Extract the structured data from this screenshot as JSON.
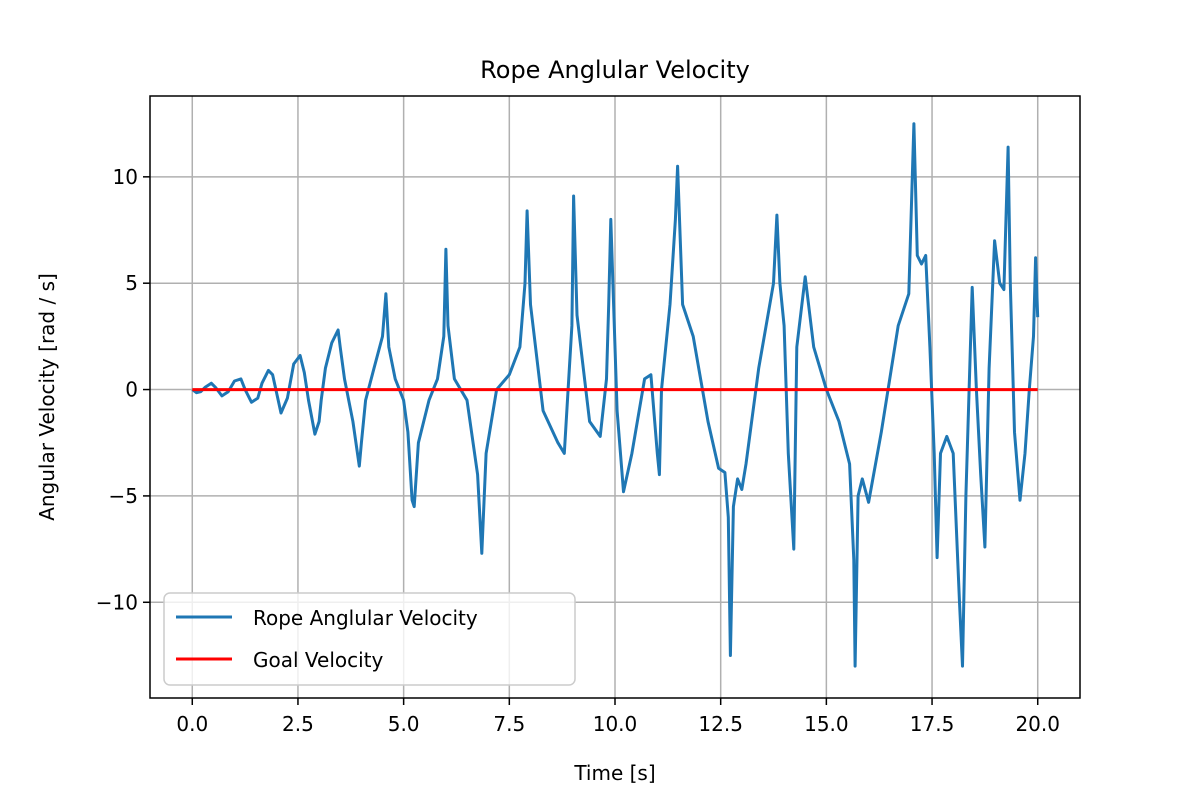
{
  "chart_data": {
    "type": "line",
    "title": "Rope Anglular Velocity",
    "xlabel": "Time [s]",
    "ylabel": "Angular Velocity [rad / s]",
    "xlim": [
      -1.0,
      21.0
    ],
    "ylim": [
      -14.5,
      13.8
    ],
    "xticks": [
      0.0,
      2.5,
      5.0,
      7.5,
      10.0,
      12.5,
      15.0,
      17.5,
      20.0
    ],
    "xtick_labels": [
      "0.0",
      "2.5",
      "5.0",
      "7.5",
      "10.0",
      "12.5",
      "15.0",
      "17.5",
      "20.0"
    ],
    "yticks": [
      -10,
      -5,
      0,
      5,
      10
    ],
    "ytick_labels": [
      "−10",
      "−5",
      "0",
      "5",
      "10"
    ],
    "grid": true,
    "legend": "lower-left",
    "series": [
      {
        "name": "Rope Anglular Velocity",
        "color": "#1f77b4",
        "x": [
          0.0,
          0.1,
          0.2,
          0.3,
          0.45,
          0.55,
          0.7,
          0.85,
          1.0,
          1.15,
          1.25,
          1.4,
          1.55,
          1.65,
          1.8,
          1.9,
          2.0,
          2.1,
          2.25,
          2.4,
          2.55,
          2.65,
          2.75,
          2.9,
          3.0,
          3.05,
          3.15,
          3.3,
          3.45,
          3.5,
          3.6,
          3.8,
          3.95,
          4.0,
          4.1,
          4.3,
          4.5,
          4.58,
          4.65,
          4.8,
          5.0,
          5.1,
          5.2,
          5.25,
          5.35,
          5.6,
          5.8,
          5.95,
          6.0,
          6.05,
          6.2,
          6.5,
          6.75,
          6.85,
          6.95,
          7.2,
          7.5,
          7.75,
          7.87,
          7.92,
          8.0,
          8.3,
          8.65,
          8.8,
          8.98,
          9.02,
          9.1,
          9.4,
          9.65,
          9.8,
          9.85,
          9.9,
          10.05,
          10.2,
          10.4,
          10.7,
          10.85,
          11.0,
          11.05,
          11.1,
          11.3,
          11.43,
          11.48,
          11.6,
          11.85,
          12.2,
          12.45,
          12.6,
          12.68,
          12.73,
          12.8,
          12.9,
          13.0,
          13.1,
          13.4,
          13.75,
          13.83,
          13.9,
          14.0,
          14.1,
          14.23,
          14.3,
          14.5,
          14.7,
          15.0,
          15.3,
          15.55,
          15.65,
          15.68,
          15.75,
          15.85,
          16.0,
          16.3,
          16.7,
          16.95,
          17.07,
          17.15,
          17.25,
          17.35,
          17.45,
          17.55,
          17.62,
          17.7,
          17.85,
          18.0,
          18.15,
          18.22,
          18.3,
          18.45,
          18.55,
          18.65,
          18.75,
          18.85,
          18.98,
          19.1,
          19.2,
          19.3,
          19.35,
          19.45,
          19.58,
          19.7,
          19.8,
          19.9,
          19.95,
          20.0
        ],
        "y": [
          0.0,
          -0.15,
          -0.1,
          0.1,
          0.3,
          0.1,
          -0.3,
          -0.1,
          0.4,
          0.5,
          0.0,
          -0.6,
          -0.4,
          0.3,
          0.9,
          0.7,
          -0.2,
          -1.1,
          -0.4,
          1.2,
          1.6,
          0.8,
          -0.5,
          -2.1,
          -1.5,
          -0.5,
          1.0,
          2.2,
          2.8,
          2.0,
          0.5,
          -1.5,
          -3.6,
          -2.5,
          -0.5,
          1.0,
          2.5,
          4.5,
          2.0,
          0.5,
          -0.5,
          -2.0,
          -5.2,
          -5.5,
          -2.5,
          -0.5,
          0.5,
          2.5,
          6.6,
          3.0,
          0.5,
          -0.5,
          -4.0,
          -7.7,
          -3.0,
          0.0,
          0.7,
          2.0,
          5.0,
          8.4,
          4.0,
          -1.0,
          -2.5,
          -3.0,
          3.0,
          9.1,
          3.5,
          -1.5,
          -2.2,
          0.5,
          4.0,
          8.0,
          -1.0,
          -4.8,
          -3.0,
          0.5,
          0.7,
          -3.0,
          -4.0,
          0.0,
          4.0,
          8.0,
          10.5,
          4.0,
          2.5,
          -1.5,
          -3.7,
          -3.9,
          -6.0,
          -12.5,
          -5.5,
          -4.2,
          -4.7,
          -3.5,
          1.0,
          5.0,
          8.2,
          5.0,
          3.0,
          -3.0,
          -7.5,
          2.0,
          5.3,
          2.0,
          0.0,
          -1.5,
          -3.5,
          -8.0,
          -13.0,
          -5.0,
          -4.2,
          -5.3,
          -2.0,
          3.0,
          4.5,
          12.5,
          6.3,
          5.9,
          6.3,
          2.0,
          -3.0,
          -7.9,
          -3.0,
          -2.2,
          -3.0,
          -10.0,
          -13.0,
          -5.0,
          4.8,
          0.0,
          -4.0,
          -7.4,
          1.0,
          7.0,
          5.0,
          4.7,
          11.4,
          5.0,
          -2.0,
          -5.2,
          -3.0,
          0.0,
          2.5,
          6.2,
          3.4
        ]
      },
      {
        "name": "Goal Velocity",
        "color": "#ff0000",
        "x": [
          0.0,
          20.0
        ],
        "y": [
          0.0,
          0.0
        ]
      }
    ]
  }
}
